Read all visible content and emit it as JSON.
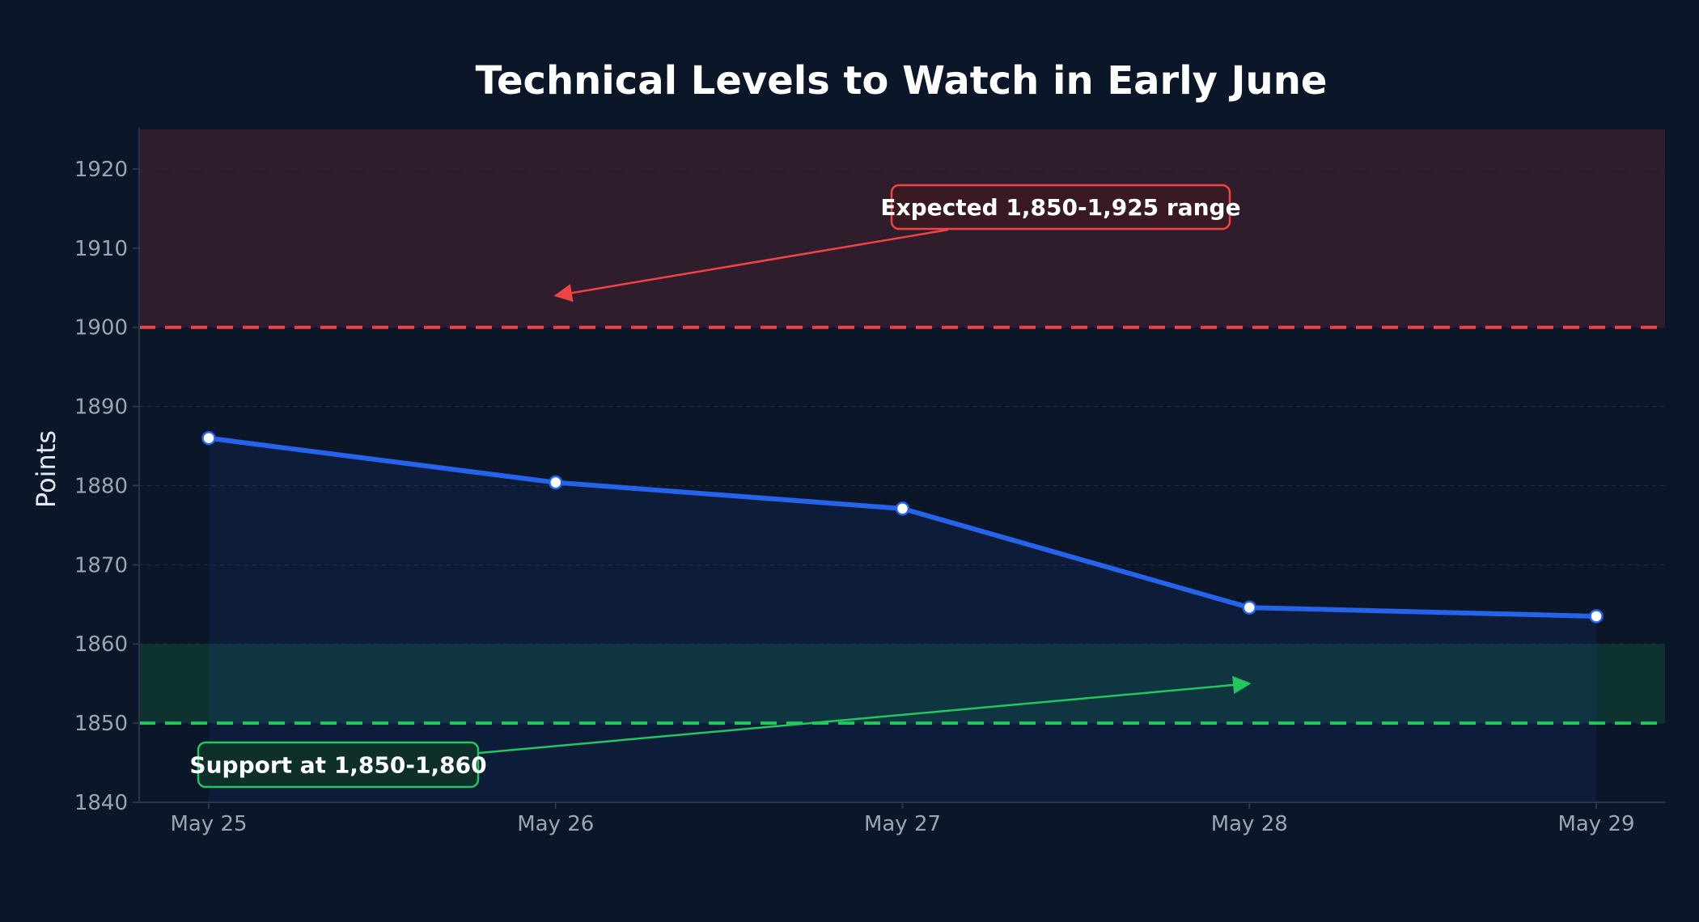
{
  "chart_data": {
    "type": "line",
    "title": "Technical Levels to Watch in Early June",
    "xlabel": "",
    "ylabel": "Points",
    "categories": [
      "May 25",
      "May 26",
      "May 27",
      "May 28",
      "May 29"
    ],
    "series": [
      {
        "values": [
          1886,
          1880.4,
          1877.1,
          1864.6,
          1863.5
        ],
        "color": "#2563eb"
      }
    ],
    "ylim": [
      1840,
      1925
    ],
    "yticks": [
      1840,
      1850,
      1860,
      1870,
      1880,
      1890,
      1900,
      1910,
      1920
    ],
    "grid": true,
    "bands": [
      {
        "y0": 1900,
        "y1": 1925,
        "color": "#ef4444"
      },
      {
        "y0": 1850,
        "y1": 1860,
        "color": "#22c55e"
      }
    ],
    "reference_lines": [
      {
        "y": 1900,
        "color": "#ef4444",
        "style": "dashed"
      },
      {
        "y": 1850,
        "color": "#22c55e",
        "style": "dashed"
      }
    ],
    "annotations": [
      {
        "text": "Expected 1,850-1,925 range",
        "color": "#ef4444",
        "target": {
          "x": "May 26",
          "y": 1904
        }
      },
      {
        "text": "Support at 1,850-1,860",
        "color": "#22c55e",
        "target": {
          "x": "May 28",
          "y": 1855
        }
      }
    ]
  },
  "colors": {
    "background": "#0b1628",
    "grid": "#1f2c3f",
    "axis": "#2a3648",
    "line": "#2563eb",
    "resistance": "#ef4444",
    "support": "#22c55e"
  }
}
